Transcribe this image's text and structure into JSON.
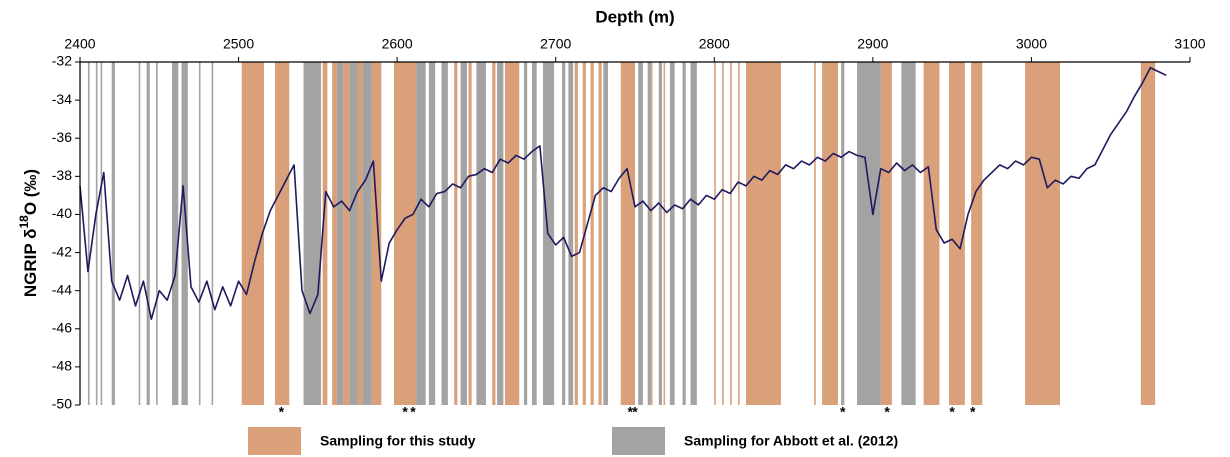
{
  "chart_data": {
    "type": "line",
    "x_label": "Depth (m)",
    "y_label": {
      "prefix": "NGRIP δ",
      "sup": "18",
      "suffix": "O (‰)"
    },
    "xlim": [
      2400,
      3100
    ],
    "ylim": [
      -50,
      -32
    ],
    "xticks": [
      2400,
      2500,
      2600,
      2700,
      2800,
      2900,
      3000,
      3100
    ],
    "yticks": [
      -32,
      -34,
      -36,
      -38,
      -40,
      -42,
      -44,
      -46,
      -48,
      -50
    ],
    "color": "#1f1a5e",
    "x": [
      2400,
      2405,
      2410,
      2415,
      2420,
      2425,
      2430,
      2435,
      2440,
      2445,
      2450,
      2455,
      2460,
      2465,
      2470,
      2475,
      2480,
      2485,
      2490,
      2495,
      2500,
      2505,
      2510,
      2515,
      2520,
      2525,
      2530,
      2535,
      2540,
      2545,
      2550,
      2555,
      2560,
      2565,
      2570,
      2575,
      2580,
      2585,
      2590,
      2595,
      2600,
      2605,
      2610,
      2615,
      2620,
      2625,
      2630,
      2635,
      2640,
      2645,
      2650,
      2655,
      2660,
      2665,
      2670,
      2675,
      2680,
      2685,
      2690,
      2695,
      2700,
      2705,
      2710,
      2715,
      2720,
      2725,
      2730,
      2735,
      2740,
      2745,
      2750,
      2755,
      2760,
      2765,
      2770,
      2775,
      2780,
      2785,
      2790,
      2795,
      2800,
      2805,
      2810,
      2815,
      2820,
      2825,
      2830,
      2835,
      2840,
      2845,
      2850,
      2855,
      2860,
      2865,
      2870,
      2875,
      2880,
      2885,
      2890,
      2895,
      2900,
      2905,
      2910,
      2915,
      2920,
      2925,
      2930,
      2935,
      2940,
      2945,
      2950,
      2955,
      2960,
      2965,
      2970,
      2975,
      2980,
      2985,
      2990,
      2995,
      3000,
      3005,
      3010,
      3015,
      3020,
      3025,
      3030,
      3035,
      3040,
      3045,
      3050,
      3055,
      3060,
      3065,
      3070,
      3075,
      3080,
      3085
    ],
    "values": [
      -38.5,
      -43,
      -40,
      -37.8,
      -43.5,
      -44.5,
      -43.2,
      -44.8,
      -43.5,
      -45.5,
      -44,
      -44.5,
      -43.2,
      -38.5,
      -43.8,
      -44.6,
      -43.5,
      -45,
      -43.8,
      -44.8,
      -43.5,
      -44.2,
      -42.5,
      -41,
      -39.8,
      -39,
      -38.2,
      -37.4,
      -44,
      -45.2,
      -44.2,
      -38.8,
      -39.6,
      -39.3,
      -39.8,
      -38.8,
      -38.2,
      -37.2,
      -43.5,
      -41.5,
      -40.8,
      -40.2,
      -40,
      -39.2,
      -39.6,
      -38.9,
      -38.8,
      -38.4,
      -38.6,
      -38,
      -37.9,
      -37.6,
      -37.8,
      -37.1,
      -37.3,
      -36.9,
      -37.1,
      -36.7,
      -36.4,
      -41,
      -41.6,
      -41.2,
      -42.2,
      -42,
      -40.5,
      -39,
      -38.6,
      -38.8,
      -38.1,
      -37.6,
      -39.6,
      -39.3,
      -39.8,
      -39.4,
      -39.9,
      -39.5,
      -39.7,
      -39.2,
      -39.5,
      -39,
      -39.2,
      -38.7,
      -38.9,
      -38.3,
      -38.5,
      -38,
      -38.2,
      -37.7,
      -37.9,
      -37.4,
      -37.6,
      -37.2,
      -37.4,
      -37,
      -37.2,
      -36.8,
      -37,
      -36.7,
      -36.9,
      -37,
      -40,
      -37.6,
      -37.8,
      -37.3,
      -37.7,
      -37.4,
      -37.8,
      -37.5,
      -40.8,
      -41.5,
      -41.3,
      -41.8,
      -40,
      -38.8,
      -38.2,
      -37.8,
      -37.4,
      -37.6,
      -37.2,
      -37.4,
      -37,
      -37.1,
      -38.6,
      -38.2,
      -38.4,
      -38,
      -38.1,
      -37.6,
      -37.4,
      -36.6,
      -35.8,
      -35.2,
      -34.6,
      -33.8,
      -33.1,
      -32.3,
      -32.5,
      -32.7
    ],
    "bands": [
      {
        "name": "Sampling for this study",
        "color": "#d9a07a",
        "ranges": [
          [
            2502,
            2516
          ],
          [
            2523,
            2532
          ],
          [
            2553,
            2556
          ],
          [
            2559,
            2562
          ],
          [
            2566,
            2570
          ],
          [
            2575,
            2578
          ],
          [
            2584,
            2590
          ],
          [
            2598,
            2612
          ],
          [
            2636,
            2638
          ],
          [
            2645,
            2647
          ],
          [
            2660,
            2662
          ],
          [
            2668,
            2677
          ],
          [
            2712,
            2714
          ],
          [
            2717,
            2719
          ],
          [
            2722,
            2724
          ],
          [
            2727,
            2729
          ],
          [
            2741,
            2750
          ],
          [
            2760,
            2761
          ],
          [
            2768,
            2769
          ],
          [
            2800,
            2801
          ],
          [
            2805,
            2806
          ],
          [
            2810,
            2811
          ],
          [
            2815,
            2816
          ],
          [
            2820,
            2842
          ],
          [
            2863,
            2864
          ],
          [
            2868,
            2878
          ],
          [
            2905,
            2912
          ],
          [
            2932,
            2942
          ],
          [
            2948,
            2958
          ],
          [
            2962,
            2969
          ],
          [
            2996,
            3018
          ],
          [
            3069,
            3078
          ]
        ]
      },
      {
        "name": "Sampling for Abbott et al. (2012)",
        "color": "#a3a3a3",
        "ranges": [
          [
            2405,
            2406
          ],
          [
            2410,
            2411
          ],
          [
            2413,
            2414
          ],
          [
            2420,
            2422
          ],
          [
            2437,
            2438
          ],
          [
            2442,
            2444
          ],
          [
            2448,
            2449
          ],
          [
            2458,
            2462
          ],
          [
            2464,
            2468
          ],
          [
            2475,
            2476
          ],
          [
            2483,
            2484
          ],
          [
            2541,
            2552
          ],
          [
            2562,
            2566
          ],
          [
            2570,
            2575
          ],
          [
            2578,
            2584
          ],
          [
            2612,
            2618
          ],
          [
            2620,
            2624
          ],
          [
            2628,
            2632
          ],
          [
            2640,
            2644
          ],
          [
            2650,
            2656
          ],
          [
            2663,
            2667
          ],
          [
            2680,
            2682
          ],
          [
            2685,
            2688
          ],
          [
            2692,
            2699
          ],
          [
            2704,
            2706
          ],
          [
            2708,
            2711
          ],
          [
            2730,
            2733
          ],
          [
            2752,
            2755
          ],
          [
            2758,
            2760
          ],
          [
            2765,
            2767
          ],
          [
            2772,
            2775
          ],
          [
            2780,
            2782
          ],
          [
            2785,
            2789
          ],
          [
            2880,
            2882
          ],
          [
            2890,
            2905
          ],
          [
            2918,
            2927
          ]
        ]
      }
    ],
    "markers": {
      "label": "*",
      "x": [
        2527,
        2605,
        2610,
        2747,
        2750,
        2881,
        2909,
        2950,
        2963
      ]
    }
  }
}
